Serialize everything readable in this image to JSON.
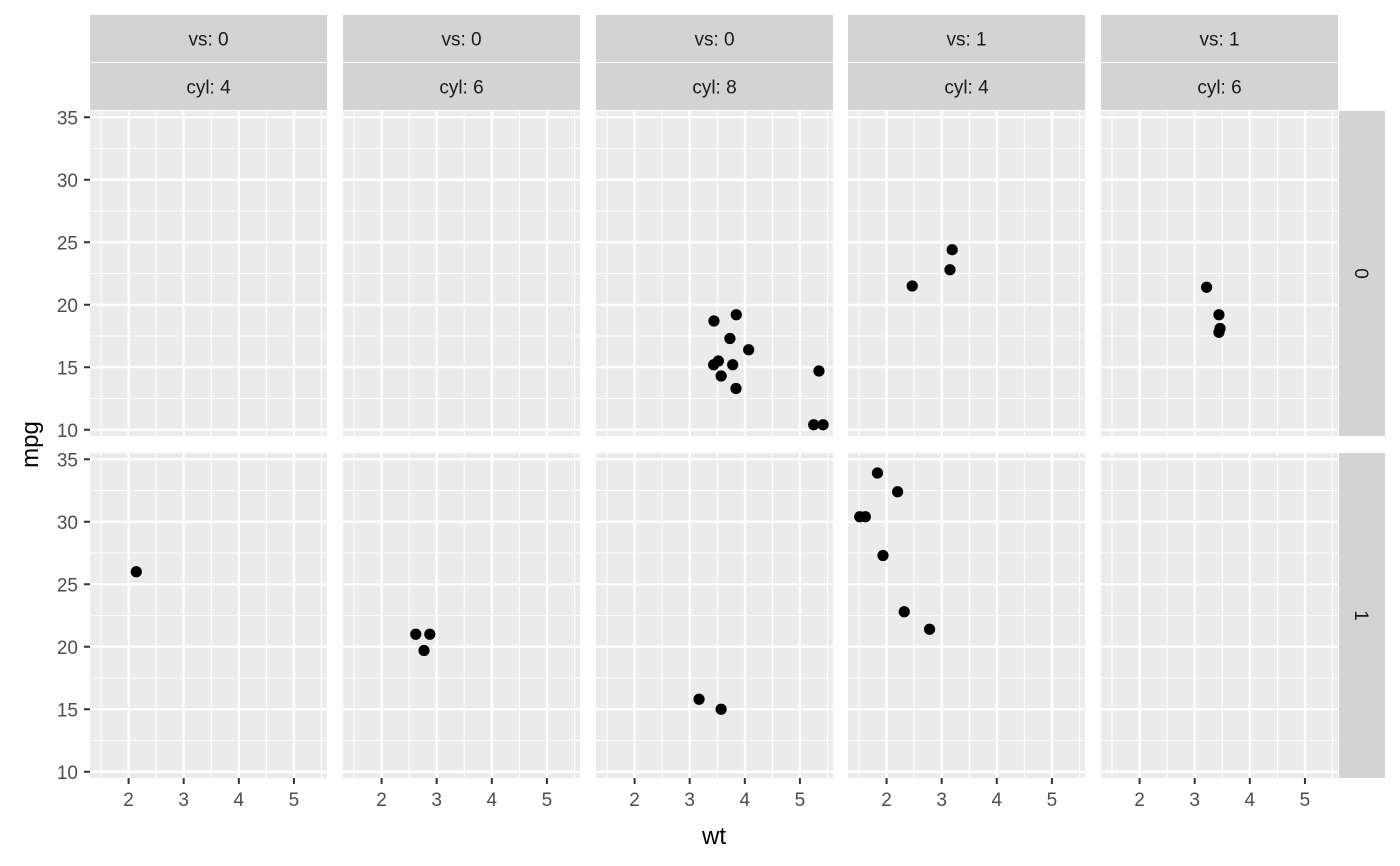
{
  "chart_data": {
    "type": "scatter",
    "xlabel": "wt",
    "ylabel": "mpg",
    "xlim": [
      1.3,
      5.6
    ],
    "ylim": [
      9.5,
      35.5
    ],
    "x_breaks": [
      2,
      3,
      4,
      5
    ],
    "y_breaks": [
      10,
      15,
      20,
      25,
      30,
      35
    ],
    "grid": true,
    "col_facets": [
      {
        "top": "vs: 0",
        "bottom": "cyl: 4"
      },
      {
        "top": "vs: 0",
        "bottom": "cyl: 6"
      },
      {
        "top": "vs: 0",
        "bottom": "cyl: 8"
      },
      {
        "top": "vs: 1",
        "bottom": "cyl: 4"
      },
      {
        "top": "vs: 1",
        "bottom": "cyl: 6"
      }
    ],
    "row_facets": [
      "0",
      "1"
    ],
    "panels": [
      {
        "row": 0,
        "col": 0,
        "points": []
      },
      {
        "row": 0,
        "col": 1,
        "points": []
      },
      {
        "row": 0,
        "col": 2,
        "points": [
          [
            3.44,
            18.7
          ],
          [
            3.57,
            14.3
          ],
          [
            4.07,
            16.4
          ],
          [
            3.73,
            17.3
          ],
          [
            3.78,
            15.2
          ],
          [
            5.25,
            10.4
          ],
          [
            5.42,
            10.4
          ],
          [
            5.345,
            14.7
          ],
          [
            3.52,
            15.5
          ],
          [
            3.435,
            15.2
          ],
          [
            3.84,
            13.3
          ],
          [
            3.845,
            19.2
          ]
        ]
      },
      {
        "row": 0,
        "col": 3,
        "points": [
          [
            2.465,
            21.5
          ],
          [
            3.19,
            24.4
          ],
          [
            3.15,
            22.8
          ]
        ]
      },
      {
        "row": 0,
        "col": 4,
        "points": [
          [
            3.215,
            21.4
          ],
          [
            3.46,
            18.1
          ],
          [
            3.44,
            17.8
          ],
          [
            3.44,
            19.2
          ]
        ]
      },
      {
        "row": 1,
        "col": 0,
        "points": [
          [
            2.14,
            26.0
          ]
        ]
      },
      {
        "row": 1,
        "col": 1,
        "points": [
          [
            2.62,
            21.0
          ],
          [
            2.875,
            21.0
          ],
          [
            2.77,
            19.7
          ]
        ]
      },
      {
        "row": 1,
        "col": 2,
        "points": [
          [
            3.17,
            15.8
          ],
          [
            3.57,
            15.0
          ]
        ]
      },
      {
        "row": 1,
        "col": 3,
        "points": [
          [
            2.2,
            32.4
          ],
          [
            1.615,
            30.4
          ],
          [
            1.835,
            33.9
          ],
          [
            1.935,
            27.3
          ],
          [
            1.513,
            30.4
          ],
          [
            2.32,
            22.8
          ],
          [
            2.78,
            21.4
          ]
        ]
      },
      {
        "row": 1,
        "col": 4,
        "points": []
      }
    ]
  }
}
